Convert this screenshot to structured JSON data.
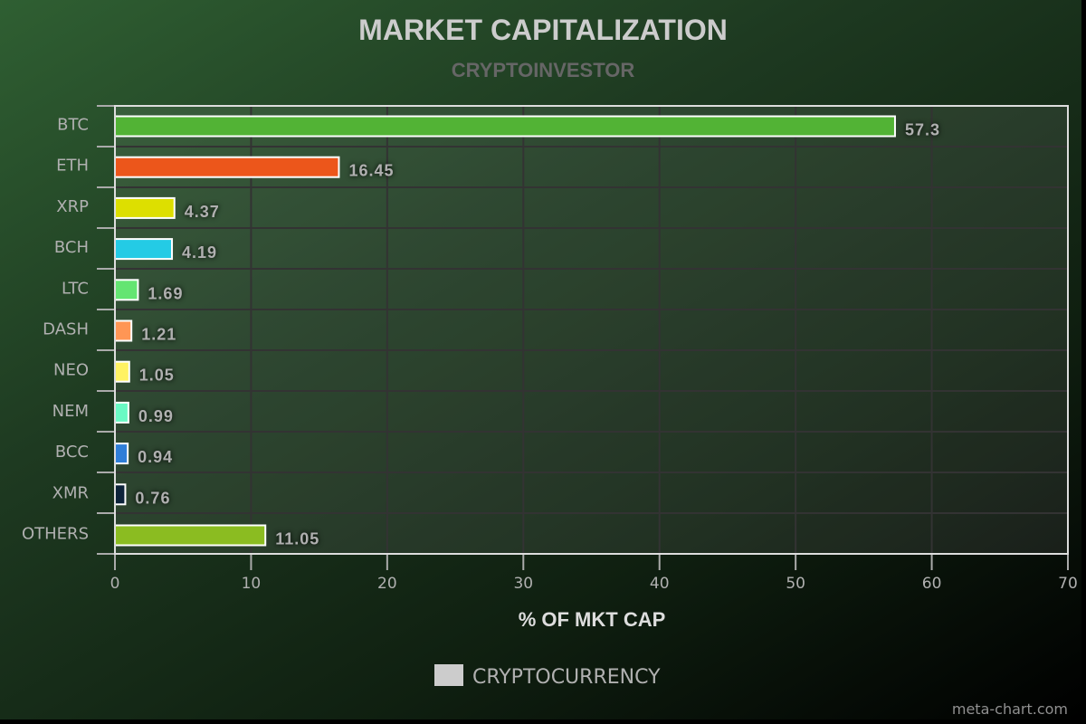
{
  "chart_data": {
    "type": "bar",
    "orientation": "horizontal",
    "title": "MARKET CAPITALIZATION",
    "subtitle": "CRYPTOINVESTOR",
    "xlabel": "% OF MKT CAP",
    "categories": [
      "BTC",
      "ETH",
      "XRP",
      "BCH",
      "LTC",
      "DASH",
      "NEO",
      "NEM",
      "BCC",
      "XMR",
      "OTHERS"
    ],
    "series": [
      {
        "name": "CRYPTOCURRENCY",
        "values": [
          57.3,
          16.45,
          4.37,
          4.19,
          1.69,
          1.21,
          1.05,
          0.99,
          0.94,
          0.76,
          11.05
        ]
      }
    ],
    "data_labels": [
      "57.3",
      "16.45",
      "4.37",
      "4.19",
      "1.69",
      "1.21",
      "1.05",
      "0.99",
      "0.94",
      "0.76",
      "11.05"
    ],
    "colors": [
      "#52b335",
      "#ec561b",
      "#dddf00",
      "#24cbe5",
      "#64e572",
      "#ff9655",
      "#fff263",
      "#6af9c4",
      "#2f7ed8",
      "#0d233a",
      "#8bbc21"
    ],
    "xlim": [
      0,
      70
    ],
    "ticks": [
      "0",
      "10",
      "20",
      "30",
      "40",
      "50",
      "60",
      "70"
    ],
    "grid": true,
    "legend_position": "bottom-center",
    "legend_color": "#cccccc"
  },
  "credit": "meta-chart.com"
}
